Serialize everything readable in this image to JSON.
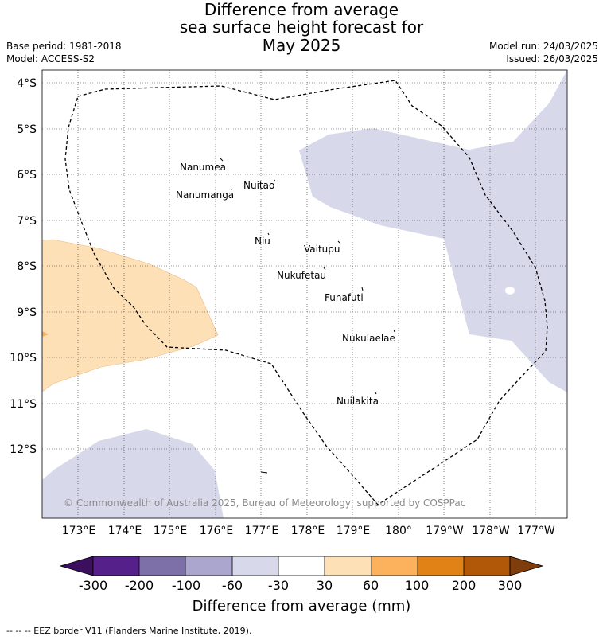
{
  "title": {
    "line1": "Difference from average",
    "line2": "sea surface height forecast for",
    "line3": "May 2025"
  },
  "meta": {
    "base_period": "Base period: 1981-2018",
    "model": "Model: ACCESS-S2",
    "model_run": "Model run: 24/03/2025",
    "issued": "Issued: 26/03/2025"
  },
  "map": {
    "lat_labels": [
      "4°S",
      "5°S",
      "6°S",
      "7°S",
      "8°S",
      "9°S",
      "10°S",
      "11°S",
      "12°S"
    ],
    "lon_labels": [
      "173°E",
      "174°E",
      "175°E",
      "176°E",
      "177°E",
      "178°E",
      "179°E",
      "180°",
      "179°W",
      "178°W",
      "177°W"
    ],
    "places": [
      {
        "name": "Nanumea"
      },
      {
        "name": "Nuitao"
      },
      {
        "name": "Nanumanga"
      },
      {
        "name": "Niu"
      },
      {
        "name": "Vaitupu"
      },
      {
        "name": "Nukufetau"
      },
      {
        "name": "Funafuti"
      },
      {
        "name": "Nukulaelae"
      },
      {
        "name": "Nuilakita"
      }
    ],
    "copyright": "© Commonwealth of Australia 2025, Bureau of Meteorology, supported by COSPPac",
    "colors": {
      "low_light": "#d7d8e9",
      "high_light": "#fde0b6"
    }
  },
  "colorbar": {
    "title": "Difference from average (mm)",
    "tick_labels": [
      "-300",
      "-200",
      "-100",
      "-60",
      "-30",
      "30",
      "60",
      "100",
      "200",
      "300"
    ],
    "colors": [
      "#3b0f5e",
      "#55208a",
      "#7d70a8",
      "#aba6cd",
      "#d7d8e9",
      "#ffffff",
      "#fde0b6",
      "#fcb25c",
      "#e08216",
      "#b15708",
      "#7f3d0b"
    ]
  },
  "footnote": "--  --  -- EEZ border V11 (Flanders Marine Institute, 2019)."
}
